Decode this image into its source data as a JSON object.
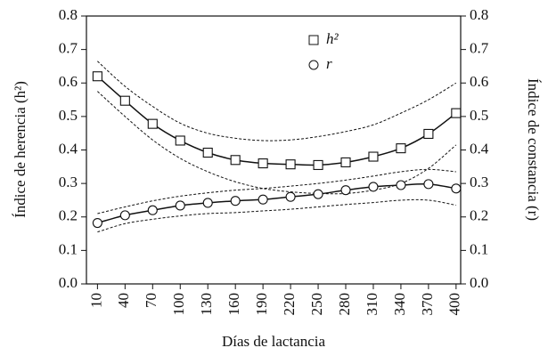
{
  "chart_data": {
    "type": "line",
    "x_label": "Días de lactancia",
    "y_label": "Índice de herencia (h²)",
    "y2_label": "Índice de constancia (r)",
    "x": [
      10,
      40,
      70,
      100,
      130,
      160,
      190,
      220,
      250,
      280,
      310,
      340,
      370,
      400
    ],
    "xlim": [
      -2,
      405
    ],
    "xticks": [
      10,
      40,
      70,
      100,
      130,
      160,
      190,
      220,
      250,
      280,
      310,
      340,
      370,
      400
    ],
    "ylim": [
      0,
      0.8
    ],
    "yticks": [
      {
        "value": 0,
        "label": "0.0"
      },
      0.1,
      0.2,
      0.3,
      0.4,
      0.5,
      0.6,
      0.7,
      0.8
    ],
    "y2lim": [
      0,
      0.8
    ],
    "y2ticks": [
      {
        "value": 0,
        "label": "0.0"
      },
      0.1,
      0.2,
      0.3,
      0.4,
      0.5,
      0.6,
      0.7,
      0.8
    ],
    "series": [
      {
        "name": "h²",
        "marker": "square",
        "color": "#111111",
        "values": [
          0.62,
          0.547,
          0.478,
          0.428,
          0.392,
          0.37,
          0.36,
          0.357,
          0.355,
          0.363,
          0.38,
          0.405,
          0.448,
          0.51
        ],
        "ci_upper": [
          0.665,
          0.59,
          0.53,
          0.48,
          0.45,
          0.435,
          0.428,
          0.43,
          0.44,
          0.455,
          0.475,
          0.51,
          0.55,
          0.6
        ],
        "ci_lower": [
          0.575,
          0.5,
          0.43,
          0.375,
          0.335,
          0.305,
          0.285,
          0.275,
          0.27,
          0.27,
          0.28,
          0.3,
          0.345,
          0.415
        ]
      },
      {
        "name": "r",
        "marker": "circle",
        "color": "#111111",
        "axis": "y2",
        "values": [
          0.182,
          0.205,
          0.22,
          0.234,
          0.242,
          0.248,
          0.252,
          0.26,
          0.268,
          0.28,
          0.29,
          0.295,
          0.298,
          0.285
        ],
        "ci_upper": [
          0.21,
          0.23,
          0.248,
          0.262,
          0.272,
          0.28,
          0.285,
          0.292,
          0.3,
          0.31,
          0.322,
          0.335,
          0.342,
          0.335
        ],
        "ci_lower": [
          0.155,
          0.18,
          0.193,
          0.203,
          0.21,
          0.213,
          0.218,
          0.223,
          0.23,
          0.237,
          0.243,
          0.25,
          0.25,
          0.235
        ]
      }
    ]
  }
}
